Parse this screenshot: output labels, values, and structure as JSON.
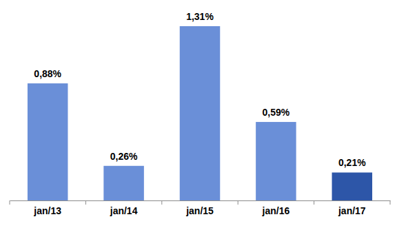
{
  "chart_data": {
    "type": "bar",
    "categories": [
      "jan/13",
      "jan/14",
      "jan/15",
      "jan/16",
      "jan/17"
    ],
    "values": [
      0.88,
      0.26,
      1.31,
      0.59,
      0.21
    ],
    "value_labels": [
      "0,88%",
      "0,26%",
      "1,31%",
      "0,59%",
      "0,21%"
    ],
    "colors": [
      "#6a8fd8",
      "#6a8fd8",
      "#6a8fd8",
      "#6a8fd8",
      "#2d56a8"
    ],
    "ylim": [
      0,
      1.31
    ],
    "data_labels": true,
    "tick_labels": "x",
    "grid": false
  }
}
